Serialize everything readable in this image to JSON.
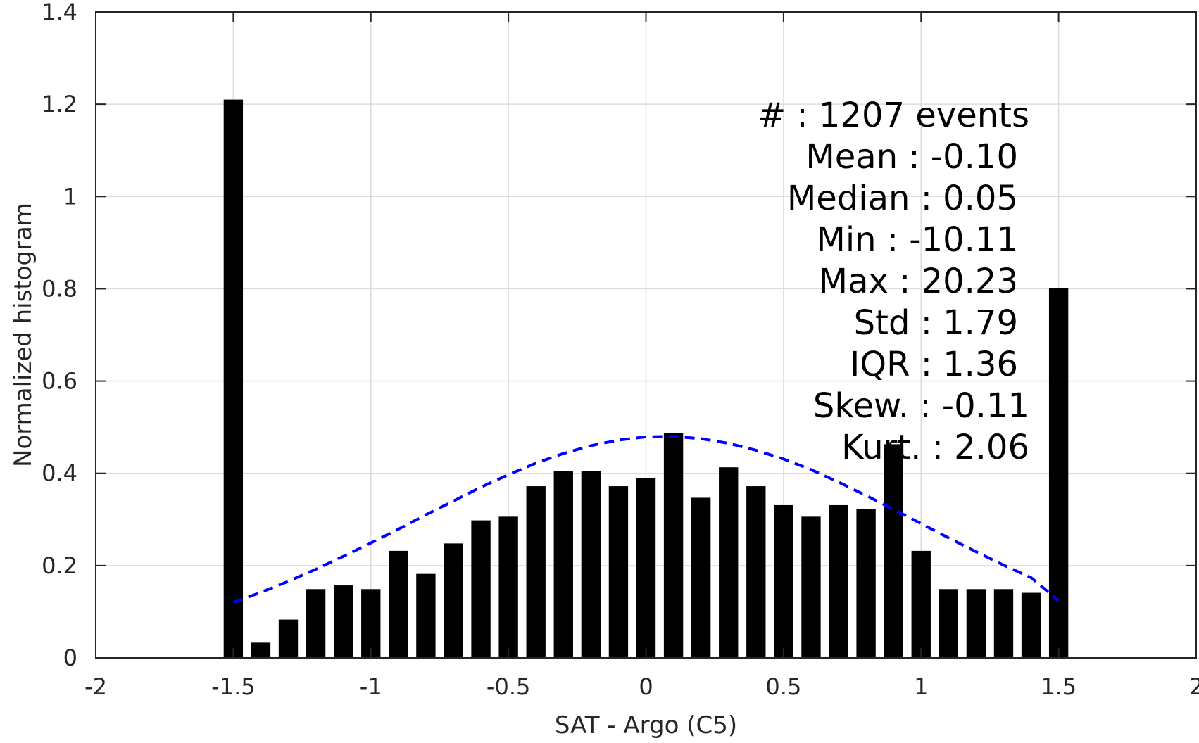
{
  "chart_data": {
    "type": "bar",
    "xlabel": "SAT - Argo (C5)",
    "ylabel": "Normalized histogram",
    "xlim": [
      -2,
      2
    ],
    "ylim": [
      0,
      1.4
    ],
    "xticks": [
      -2,
      -1.5,
      -1,
      -0.5,
      0,
      0.5,
      1,
      1.5,
      2
    ],
    "xtick_labels": [
      "-2",
      "-1.5",
      "-1",
      "-0.5",
      "0",
      "0.5",
      "1",
      "1.5",
      "2"
    ],
    "yticks": [
      0,
      0.2,
      0.4,
      0.6,
      0.8,
      1,
      1.2,
      1.4
    ],
    "ytick_labels": [
      "0",
      "0.2",
      "0.4",
      "0.6",
      "0.8",
      "1",
      "1.2",
      "1.4"
    ],
    "grid": true,
    "bar_color": "#000000",
    "x": [
      -1.5,
      -1.4,
      -1.3,
      -1.2,
      -1.1,
      -1.0,
      -0.9,
      -0.8,
      -0.7,
      -0.6,
      -0.5,
      -0.4,
      -0.3,
      -0.2,
      -0.1,
      0.0,
      0.1,
      0.2,
      0.3,
      0.4,
      0.5,
      0.6,
      0.7,
      0.8,
      0.9,
      1.0,
      1.1,
      1.2,
      1.3,
      1.4,
      1.5
    ],
    "values": [
      1.21,
      0.033,
      0.083,
      0.149,
      0.157,
      0.149,
      0.232,
      0.182,
      0.248,
      0.298,
      0.306,
      0.372,
      0.405,
      0.405,
      0.372,
      0.389,
      0.488,
      0.347,
      0.413,
      0.372,
      0.331,
      0.306,
      0.331,
      0.323,
      0.463,
      0.232,
      0.149,
      0.149,
      0.149,
      0.141,
      0.802
    ],
    "bar_width": 0.07,
    "fit_curve": {
      "style": "dashed",
      "color": "#0000ff",
      "x": [
        -1.5,
        -1.4,
        -1.3,
        -1.2,
        -1.1,
        -1.0,
        -0.9,
        -0.8,
        -0.7,
        -0.6,
        -0.5,
        -0.4,
        -0.3,
        -0.2,
        -0.1,
        0.0,
        0.1,
        0.2,
        0.3,
        0.4,
        0.5,
        0.6,
        0.7,
        0.8,
        0.9,
        1.0,
        1.1,
        1.2,
        1.3,
        1.4,
        1.5
      ],
      "y": [
        0.12,
        0.142,
        0.166,
        0.192,
        0.22,
        0.249,
        0.279,
        0.31,
        0.34,
        0.37,
        0.397,
        0.422,
        0.443,
        0.46,
        0.472,
        0.479,
        0.48,
        0.475,
        0.465,
        0.45,
        0.431,
        0.408,
        0.381,
        0.352,
        0.322,
        0.291,
        0.26,
        0.23,
        0.201,
        0.174,
        0.124
      ]
    },
    "annotations": [
      "#  : 1207 events",
      "Mean : -0.10",
      "Median : 0.05",
      "Min : -10.11",
      "Max : 20.23",
      "Std : 1.79",
      "IQR : 1.36",
      "Skew. : -0.11",
      "Kurt. : 2.06"
    ]
  }
}
